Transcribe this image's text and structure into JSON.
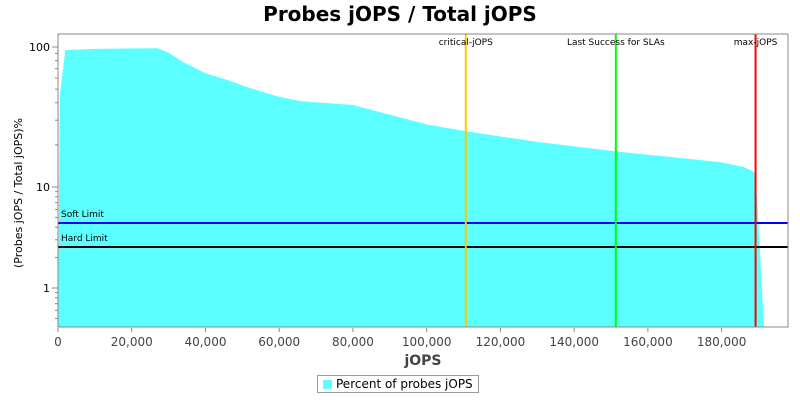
{
  "chart_data": {
    "type": "area",
    "title": "Probes jOPS / Total jOPS",
    "xlabel": "jOPS",
    "ylabel": "(Probes jOPS / Total jOPS)%",
    "xlim": [
      0,
      198000
    ],
    "ylim": [
      0.41,
      124
    ],
    "yscale": "log",
    "x_ticks": [
      0,
      20000,
      40000,
      60000,
      80000,
      100000,
      120000,
      140000,
      160000,
      180000
    ],
    "x_tick_labels": [
      "0",
      "20,000",
      "40,000",
      "60,000",
      "80,000",
      "100,000",
      "120,000",
      "140,000",
      "160,000",
      "180,000"
    ],
    "y_ticks": [
      1,
      10,
      100
    ],
    "y_tick_labels": [
      "1",
      "10",
      "100"
    ],
    "grid": false,
    "legend_placement": "bottom",
    "series": [
      {
        "name": "Percent of probes jOPS",
        "color": "#5bffff",
        "x": [
          0,
          500,
          2000,
          10000,
          27000,
          30000,
          34000,
          40000,
          46000,
          52000,
          60000,
          66000,
          80000,
          100000,
          110600,
          130000,
          151000,
          170000,
          180000,
          186000,
          188800,
          189600,
          191500
        ],
        "y": [
          0.41,
          45,
          95,
          97,
          98,
          91,
          78,
          65,
          58,
          51,
          44,
          41,
          38.5,
          28,
          25,
          21,
          18,
          16,
          15,
          13.9,
          12.8,
          8,
          0.41
        ]
      }
    ],
    "vertical_markers": [
      {
        "label": "critical-jOPS",
        "x": 110600,
        "color": "#ffc800"
      },
      {
        "label": "Last Success for SLAs",
        "x": 151300,
        "color": "#00ff00"
      },
      {
        "label": "max-jOPS",
        "x": 189200,
        "color": "#ff0000"
      }
    ],
    "horizontal_markers": [
      {
        "label": "Soft Limit",
        "y": 4.4,
        "color": "#0000ff"
      },
      {
        "label": "Hard Limit",
        "y": 2.55,
        "color": "#000000"
      }
    ]
  }
}
